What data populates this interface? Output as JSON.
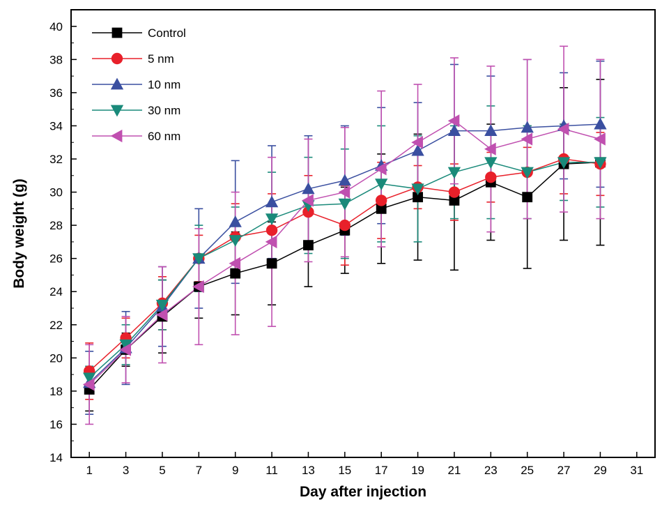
{
  "chart_data": {
    "type": "line",
    "xlabel": "Day after injection",
    "ylabel": "Body weight (g)",
    "xlim": [
      0,
      32
    ],
    "ylim": [
      14,
      41
    ],
    "x_ticks": [
      1,
      3,
      5,
      7,
      9,
      11,
      13,
      15,
      17,
      19,
      21,
      23,
      25,
      27,
      29,
      31
    ],
    "y_ticks": [
      14,
      16,
      18,
      20,
      22,
      24,
      26,
      28,
      30,
      32,
      34,
      36,
      38,
      40
    ],
    "legend_position": "top-left",
    "grid": false,
    "x": [
      1,
      3,
      5,
      7,
      9,
      11,
      13,
      15,
      17,
      19,
      21,
      23,
      25,
      27,
      29
    ],
    "series": [
      {
        "name": "Control",
        "color": "#000000",
        "marker": "square",
        "values": [
          18.1,
          20.5,
          22.5,
          24.3,
          25.1,
          25.7,
          26.8,
          27.7,
          29.0,
          29.7,
          29.5,
          30.6,
          29.7,
          31.7,
          31.8
        ],
        "errors": [
          1.3,
          1.0,
          2.2,
          1.9,
          2.5,
          2.5,
          2.5,
          2.6,
          3.3,
          3.8,
          4.2,
          3.5,
          4.3,
          4.6,
          5.0
        ]
      },
      {
        "name": "5 nm",
        "color": "#e8202a",
        "marker": "circle",
        "values": [
          19.2,
          21.2,
          23.3,
          26.0,
          27.3,
          27.7,
          28.8,
          28.0,
          29.5,
          30.3,
          30.0,
          30.9,
          31.2,
          32.0,
          31.7
        ],
        "errors": [
          1.7,
          1.2,
          1.6,
          1.4,
          2.0,
          2.2,
          2.2,
          2.4,
          2.3,
          1.3,
          1.7,
          1.5,
          1.5,
          2.1,
          1.9
        ]
      },
      {
        "name": "10 nm",
        "color": "#3a4fa0",
        "marker": "triangle-up",
        "values": [
          18.5,
          20.6,
          23.1,
          26.0,
          28.2,
          29.4,
          30.2,
          30.7,
          31.6,
          32.5,
          33.7,
          33.7,
          33.9,
          34.0,
          34.1
        ],
        "errors": [
          1.9,
          2.2,
          2.4,
          3.0,
          3.7,
          3.4,
          3.2,
          3.3,
          3.5,
          2.9,
          4.0,
          3.3,
          4.1,
          3.2,
          3.8
        ]
      },
      {
        "name": "30 nm",
        "color": "#1a8a7a",
        "marker": "triangle-down",
        "values": [
          18.8,
          20.8,
          23.2,
          26.0,
          27.1,
          28.4,
          29.2,
          29.3,
          30.5,
          30.2,
          31.2,
          31.8,
          31.2,
          31.8,
          31.8
        ],
        "errors": [
          0.7,
          1.2,
          1.5,
          2.0,
          2.0,
          2.8,
          2.9,
          3.3,
          3.5,
          3.2,
          2.8,
          3.4,
          2.8,
          2.3,
          2.7
        ]
      },
      {
        "name": "60 nm",
        "color": "#c050b0",
        "marker": "triangle-left",
        "values": [
          18.4,
          20.5,
          22.6,
          24.3,
          25.7,
          27.0,
          29.5,
          30.0,
          31.4,
          33.0,
          34.3,
          32.6,
          33.2,
          33.8,
          33.2
        ],
        "errors": [
          2.4,
          2.0,
          2.9,
          3.5,
          4.3,
          5.1,
          3.7,
          3.9,
          4.7,
          3.5,
          3.8,
          5.0,
          4.8,
          5.0,
          4.8
        ]
      }
    ]
  }
}
